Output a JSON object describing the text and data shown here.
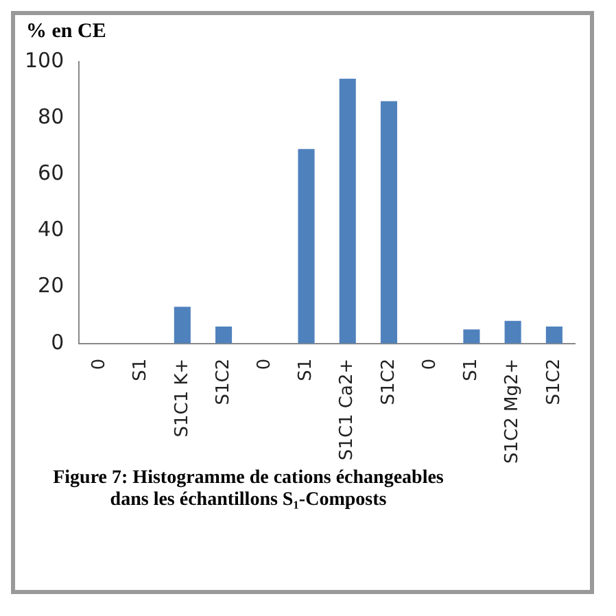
{
  "chart_data": {
    "type": "bar",
    "ylabel": "% en CE",
    "categories": [
      "0",
      "S1",
      "S1C1 K+",
      "S1C2",
      "0",
      "S1",
      "S1C1 Ca2+",
      "S1C2",
      "0",
      "S1",
      "S1C2 Mg2+",
      "S1C2"
    ],
    "values": [
      0,
      0,
      13,
      6,
      0,
      69,
      94,
      86,
      0,
      5,
      8,
      6
    ],
    "color": "#4f81bd",
    "ylim": [
      0,
      100
    ],
    "yticks": [
      0,
      20,
      40,
      60,
      80,
      100
    ],
    "grid": false,
    "legend": false,
    "annotations": [
      "Figure 7: Histogramme de cations échangeables dans les échantillons S₁-Composts"
    ]
  }
}
